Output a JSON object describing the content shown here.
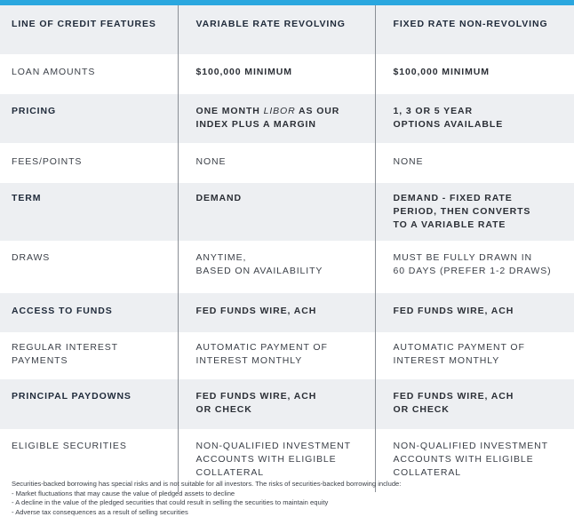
{
  "accent_color": "#2aa7df",
  "table": {
    "headers": [
      "LINE OF CREDIT FEATURES",
      "VARIABLE RATE REVOLVING",
      "FIXED RATE NON-REVOLVING"
    ],
    "rows": [
      {
        "label": "LOAN AMOUNTS",
        "variable": "$100,000 MINIMUM",
        "fixed": "$100,000 MINIMUM"
      },
      {
        "label": "PRICING",
        "variable_pre": "ONE MONTH ",
        "variable_em": "LIBOR",
        "variable_post": " AS OUR",
        "variable_line2": "INDEX PLUS A MARGIN",
        "fixed": "1, 3 OR 5 YEAR",
        "fixed_line2": "OPTIONS AVAILABLE"
      },
      {
        "label": "FEES/POINTS",
        "variable": "NONE",
        "fixed": "NONE"
      },
      {
        "label": "TERM",
        "variable": "DEMAND",
        "fixed": "DEMAND - FIXED RATE",
        "fixed_line2": "PERIOD, THEN CONVERTS",
        "fixed_line3": "TO A VARIABLE RATE"
      },
      {
        "label": "DRAWS",
        "variable": "ANYTIME,",
        "variable_line2": "BASED ON AVAILABILITY",
        "fixed": "MUST BE FULLY DRAWN IN",
        "fixed_line2": "60 DAYS (PREFER 1-2 DRAWS)"
      },
      {
        "label": "ACCESS TO FUNDS",
        "variable": "FED FUNDS WIRE, ACH",
        "fixed": "FED FUNDS WIRE, ACH"
      },
      {
        "label": "REGULAR INTEREST",
        "label_line2": "PAYMENTS",
        "variable": "AUTOMATIC PAYMENT OF",
        "variable_line2": "INTEREST MONTHLY",
        "fixed": "AUTOMATIC PAYMENT OF",
        "fixed_line2": "INTEREST MONTHLY"
      },
      {
        "label": "PRINCIPAL PAYDOWNS",
        "variable": "FED FUNDS WIRE, ACH",
        "variable_line2": "OR CHECK",
        "fixed": "FED FUNDS WIRE, ACH",
        "fixed_line2": "OR CHECK"
      },
      {
        "label": "ELIGIBLE SECURITIES",
        "variable": "NON-QUALIFIED INVESTMENT",
        "variable_line2": "ACCOUNTS WITH ELIGIBLE",
        "variable_line3": "COLLATERAL",
        "fixed": "NON-QUALIFIED INVESTMENT",
        "fixed_line2": "ACCOUNTS WITH ELIGIBLE",
        "fixed_line3": "COLLATERAL"
      }
    ]
  },
  "footnote": {
    "intro": "Securities-backed borrowing has special risks and is not suitable for all investors. The risks of securities-backed borrowing include:",
    "items": [
      "- Market fluctuations that may cause the value of pledged assets to decline",
      "- A decline in the value of the pledged securities that could result in selling the securities to maintain equity",
      "- Adverse tax consequences as a result of selling securities"
    ]
  }
}
